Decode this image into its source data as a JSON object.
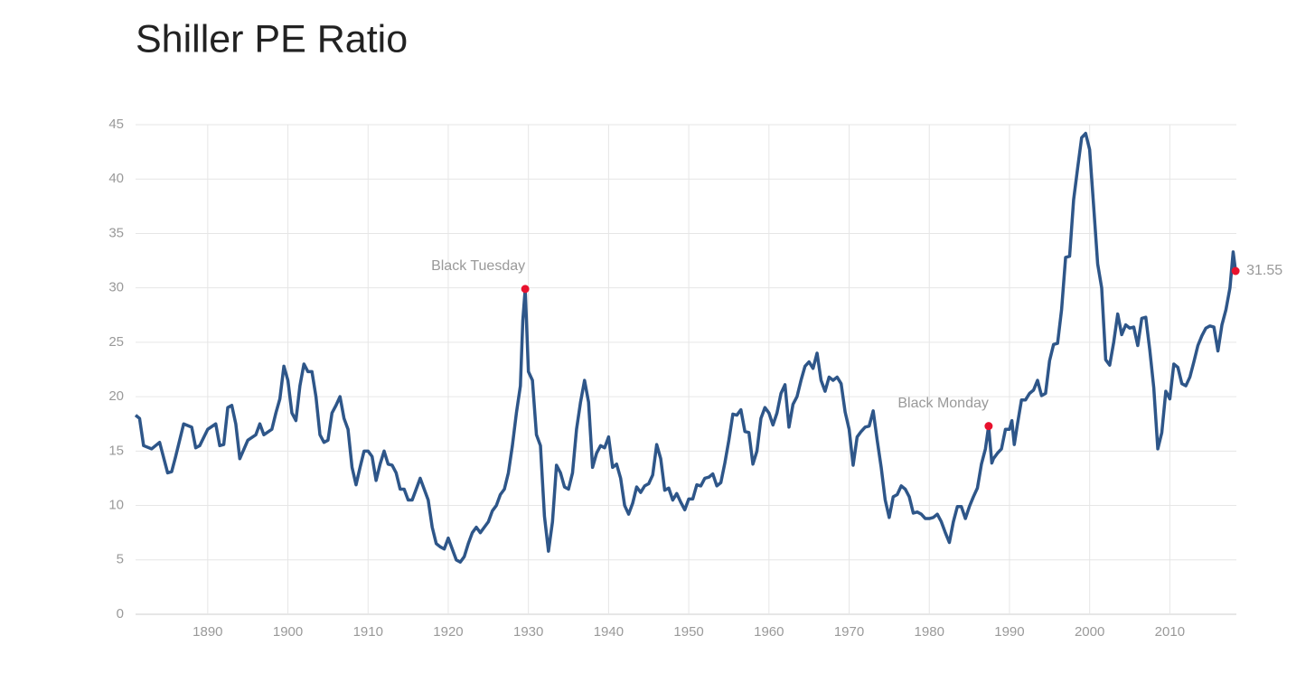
{
  "chart_data": {
    "type": "line",
    "title": "Shiller PE Ratio",
    "x": [
      1881,
      1881.5,
      1882,
      1883,
      1884,
      1885,
      1885.5,
      1886,
      1887,
      1888,
      1888.5,
      1889,
      1890,
      1891,
      1891.5,
      1892,
      1892.5,
      1893,
      1893.5,
      1894,
      1895,
      1896,
      1896.5,
      1897,
      1898,
      1898.5,
      1899,
      1899.5,
      1900,
      1900.5,
      1901,
      1901.5,
      1902,
      1902.5,
      1903,
      1903.5,
      1904,
      1904.5,
      1905,
      1905.5,
      1906,
      1906.5,
      1907,
      1907.5,
      1908,
      1908.5,
      1909,
      1909.5,
      1910,
      1910.5,
      1911,
      1911.5,
      1912,
      1912.5,
      1913,
      1913.5,
      1914,
      1914.5,
      1915,
      1915.5,
      1916,
      1916.5,
      1917,
      1917.5,
      1918,
      1918.5,
      1919,
      1919.5,
      1920,
      1920.5,
      1921,
      1921.5,
      1922,
      1922.5,
      1923,
      1923.5,
      1924,
      1924.5,
      1925,
      1925.5,
      1926,
      1926.5,
      1927,
      1927.5,
      1928,
      1928.5,
      1929,
      1929.3,
      1929.6,
      1930,
      1930.5,
      1931,
      1931.5,
      1932,
      1932.5,
      1933,
      1933.5,
      1934,
      1934.5,
      1935,
      1935.5,
      1936,
      1936.5,
      1937,
      1937.5,
      1938,
      1938.5,
      1939,
      1939.5,
      1940,
      1940.5,
      1941,
      1941.5,
      1942,
      1942.5,
      1943,
      1943.5,
      1944,
      1944.5,
      1945,
      1945.5,
      1946,
      1946.5,
      1947,
      1947.5,
      1948,
      1948.5,
      1949,
      1949.5,
      1950,
      1950.5,
      1951,
      1951.5,
      1952,
      1952.5,
      1953,
      1953.5,
      1954,
      1954.5,
      1955,
      1955.5,
      1956,
      1956.5,
      1957,
      1957.5,
      1958,
      1958.5,
      1959,
      1959.5,
      1960,
      1960.5,
      1961,
      1961.5,
      1962,
      1962.5,
      1963,
      1963.5,
      1964,
      1964.5,
      1965,
      1965.5,
      1966,
      1966.5,
      1967,
      1967.5,
      1968,
      1968.5,
      1969,
      1969.5,
      1970,
      1970.5,
      1971,
      1971.5,
      1972,
      1972.5,
      1973,
      1973.5,
      1974,
      1974.5,
      1975,
      1975.5,
      1976,
      1976.5,
      1977,
      1977.5,
      1978,
      1978.5,
      1979,
      1979.5,
      1980,
      1980.5,
      1981,
      1981.5,
      1982,
      1982.5,
      1983,
      1983.5,
      1984,
      1984.5,
      1985,
      1985.5,
      1986,
      1986.5,
      1987,
      1987.4,
      1987.8,
      1988,
      1988.5,
      1989,
      1989.5,
      1990,
      1990.3,
      1990.6,
      1991,
      1991.5,
      1992,
      1992.5,
      1993,
      1993.5,
      1994,
      1994.5,
      1995,
      1995.5,
      1996,
      1996.5,
      1997,
      1997.5,
      1998,
      1998.5,
      1999,
      1999.5,
      2000,
      2000.5,
      2001,
      2001.5,
      2002,
      2002.5,
      2003,
      2003.5,
      2004,
      2004.5,
      2005,
      2005.5,
      2006,
      2006.5,
      2007,
      2007.5,
      2008,
      2008.5,
      2009,
      2009.5,
      2010,
      2010.5,
      2011,
      2011.5,
      2012,
      2012.5,
      2013,
      2013.5,
      2014,
      2014.5,
      2015,
      2015.5,
      2016,
      2016.5,
      2017,
      2017.5,
      2017.9,
      2018.2
    ],
    "values": [
      18.3,
      18,
      15.5,
      15.2,
      15.8,
      13,
      13.1,
      14.5,
      17.5,
      17.2,
      15.3,
      15.5,
      17,
      17.5,
      15.5,
      15.6,
      19,
      19.2,
      17.5,
      14.3,
      16,
      16.5,
      17.5,
      16.5,
      17,
      18.5,
      19.8,
      22.8,
      21.5,
      18.5,
      17.8,
      21,
      23,
      22.3,
      22.3,
      20,
      16.5,
      15.8,
      16,
      18.5,
      19.2,
      20,
      18,
      17,
      13.5,
      11.9,
      13.5,
      15,
      15,
      14.5,
      12.3,
      13.8,
      15,
      13.8,
      13.7,
      13,
      11.5,
      11.5,
      10.5,
      10.5,
      11.5,
      12.5,
      11.5,
      10.5,
      8,
      6.5,
      6.2,
      6,
      7,
      6,
      5,
      4.8,
      5.3,
      6.5,
      7.5,
      8,
      7.5,
      8,
      8.5,
      9.5,
      10,
      11,
      11.5,
      13,
      15.5,
      18.5,
      21,
      27,
      29.9,
      22.3,
      21.5,
      16.5,
      15.5,
      9,
      5.8,
      8.5,
      13.7,
      13,
      11.7,
      11.5,
      13,
      17,
      19.5,
      21.5,
      19.5,
      13.5,
      14.8,
      15.5,
      15.3,
      16.3,
      13.5,
      13.8,
      12.5,
      10,
      9.2,
      10.2,
      11.7,
      11.2,
      11.8,
      12,
      12.8,
      15.6,
      14.3,
      11.4,
      11.6,
      10.5,
      11.1,
      10.3,
      9.6,
      10.6,
      10.6,
      11.9,
      11.8,
      12.5,
      12.6,
      12.9,
      11.8,
      12.1,
      13.9,
      16,
      18.4,
      18.3,
      18.8,
      16.8,
      16.7,
      13.8,
      15,
      18,
      19,
      18.5,
      17.4,
      18.5,
      20.3,
      21.1,
      17.2,
      19.3,
      20,
      21.5,
      22.8,
      23.2,
      22.6,
      24,
      21.5,
      20.5,
      21.8,
      21.5,
      21.8,
      21.2,
      18.6,
      17,
      13.7,
      16.3,
      16.8,
      17.2,
      17.3,
      18.7,
      16,
      13.5,
      10.5,
      8.9,
      10.8,
      11,
      11.8,
      11.5,
      10.8,
      9.3,
      9.4,
      9.2,
      8.8,
      8.8,
      8.9,
      9.2,
      8.5,
      7.5,
      6.6,
      8.5,
      9.9,
      9.9,
      8.8,
      9.9,
      10.8,
      11.6,
      13.8,
      15.2,
      17.3,
      13.9,
      14.3,
      14.8,
      15.2,
      17,
      17,
      17.8,
      15.6,
      17.5,
      19.7,
      19.7,
      20.3,
      20.6,
      21.5,
      20.1,
      20.3,
      23.3,
      24.8,
      24.9,
      28,
      32.8,
      32.9,
      38.1,
      41,
      43.8,
      44.2,
      42.7,
      37.5,
      32.2,
      30,
      23.4,
      22.9,
      25,
      27.6,
      25.7,
      26.6,
      26.3,
      26.4,
      24.7,
      27.2,
      27.3,
      24.3,
      20.8,
      15.2,
      16.7,
      20.5,
      19.8,
      23,
      22.7,
      21.2,
      21,
      21.8,
      23.2,
      24.7,
      25.6,
      26.3,
      26.5,
      26.4,
      24.2,
      26.6,
      28,
      30,
      33.3,
      31.55
    ],
    "color": "#2e5689",
    "annotations": [
      {
        "label": "Black Tuesday",
        "x": 1929.6,
        "y": 29.9
      },
      {
        "label": "Black Monday",
        "x": 1987.4,
        "y": 17.3
      }
    ],
    "last_value": {
      "x": 2018.2,
      "y": 31.55
    },
    "marker_color": "#e8112d",
    "xlim": [
      1881,
      2018.3
    ],
    "xticks": [
      1890,
      1900,
      1910,
      1920,
      1930,
      1940,
      1950,
      1960,
      1970,
      1980,
      1990,
      2000,
      2010
    ],
    "ylim": [
      0,
      45
    ],
    "yticks": [
      0,
      5,
      10,
      15,
      20,
      25,
      30,
      35,
      40,
      45
    ],
    "grid": true
  }
}
